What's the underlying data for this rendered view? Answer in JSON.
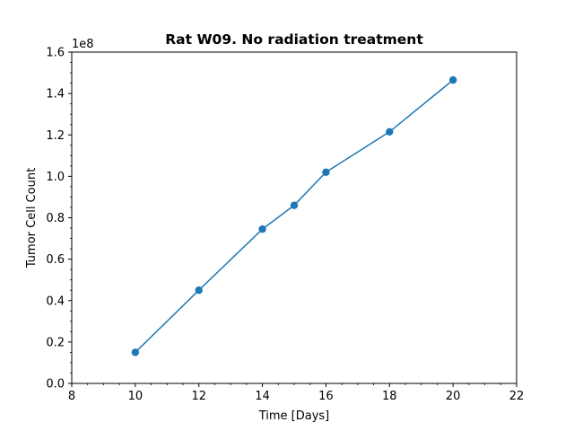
{
  "chart_data": {
    "type": "line",
    "title": "Rat W09. No radiation treatment",
    "xlabel": "Time [Days]",
    "ylabel": "Tumor Cell Count",
    "y_offset_label": "1e8",
    "xlim": [
      8,
      22
    ],
    "ylim": [
      0,
      1.6
    ],
    "x_ticks": [
      8,
      10,
      12,
      14,
      16,
      18,
      20,
      22
    ],
    "x_tick_labels": [
      "8",
      "10",
      "12",
      "14",
      "16",
      "18",
      "20",
      "22"
    ],
    "y_ticks": [
      0.0,
      0.2,
      0.4,
      0.6,
      0.8,
      1.0,
      1.2,
      1.4,
      1.6
    ],
    "y_tick_labels": [
      "0.0",
      "0.2",
      "0.4",
      "0.6",
      "0.8",
      "1.0",
      "1.2",
      "1.4",
      "1.6"
    ],
    "grid": false,
    "legend": "none",
    "series": [
      {
        "color": "#1f77b4",
        "marker": "circle",
        "x": [
          10,
          12,
          14,
          15,
          16,
          18,
          20
        ],
        "y": [
          0.15,
          0.45,
          0.745,
          0.86,
          1.02,
          1.215,
          1.465
        ]
      }
    ]
  }
}
